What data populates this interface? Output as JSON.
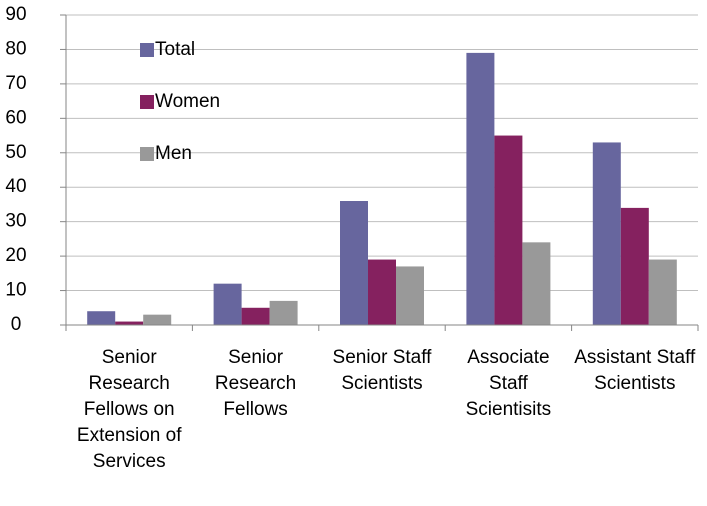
{
  "chart_data": {
    "type": "bar",
    "categories": [
      "Senior Research Fellows on Extension of Services",
      "Senior Research Fellows",
      "Senior Staff Scientists",
      "Associate Staff Scientisits",
      "Assistant Staff Scientists"
    ],
    "series": [
      {
        "name": "Total",
        "color": "#67669e",
        "values": [
          4,
          12,
          36,
          79,
          53
        ]
      },
      {
        "name": "Women",
        "color": "#85215f",
        "values": [
          1,
          5,
          19,
          55,
          34
        ]
      },
      {
        "name": "Men",
        "color": "#999999",
        "values": [
          3,
          7,
          17,
          24,
          19
        ]
      }
    ],
    "ylim": [
      0,
      90
    ],
    "yticks": [
      0,
      10,
      20,
      30,
      40,
      50,
      60,
      70,
      80,
      90
    ],
    "grid": true,
    "legend": "upper left"
  }
}
